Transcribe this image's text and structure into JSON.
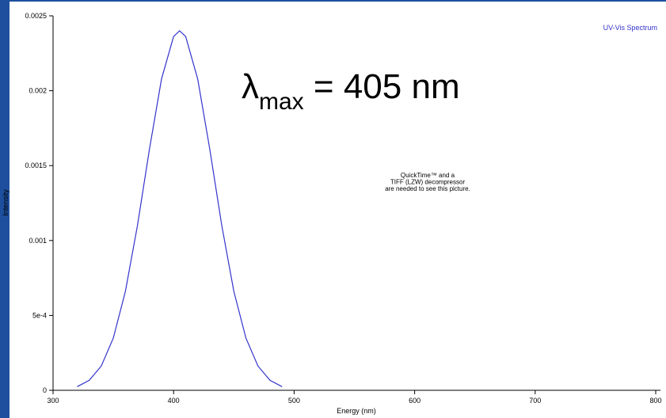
{
  "chart_data": {
    "type": "line",
    "x_label": "Energy (nm)",
    "y_label": "Intensity",
    "x": [
      320,
      330,
      340,
      350,
      360,
      370,
      380,
      390,
      400,
      405,
      410,
      420,
      430,
      440,
      450,
      460,
      470,
      480,
      490
    ],
    "series": [
      {
        "name": "UV-Vis Spectrum",
        "color": "#3333cc",
        "values": [
          2.4e-05,
          6.65e-05,
          0.000162,
          0.000349,
          0.00066,
          0.001099,
          0.001611,
          0.002079,
          0.002362,
          0.0024,
          0.002362,
          0.002079,
          0.001611,
          0.001099,
          0.00066,
          0.000349,
          0.000162,
          6.65e-05,
          2.4e-05
        ]
      }
    ],
    "xlim": [
      300,
      800
    ],
    "xticks": [
      300,
      400,
      500,
      600,
      700,
      800
    ],
    "ylim": [
      0,
      0.0025
    ],
    "yticks": [
      0,
      {
        "value": 0.0005,
        "label": "5e-4"
      },
      0.001,
      0.0015,
      0.002,
      0.0025
    ],
    "annotation": {
      "symbol": "λ",
      "subscript": "max",
      "text": " = 405 nm"
    },
    "placeholder_lines": [
      "QuickTime™ and a",
      "TIFF (LZW) decompressor",
      "are needed to see this picture."
    ]
  }
}
